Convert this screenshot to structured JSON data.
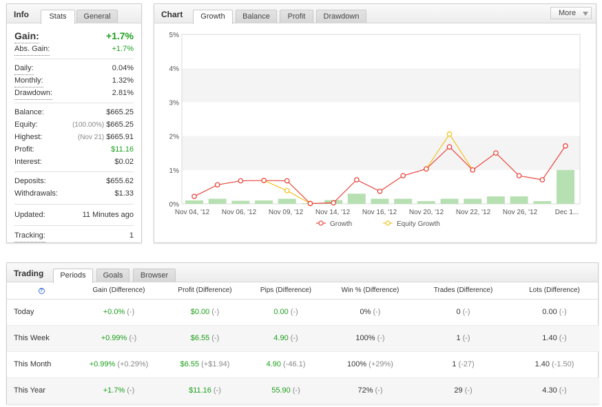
{
  "info": {
    "title": "Info",
    "tabs": [
      {
        "label": "Stats"
      },
      {
        "label": "General"
      }
    ],
    "gain": {
      "label": "Gain:",
      "value": "+1.7%"
    },
    "abs_gain": {
      "label": "Abs. Gain:",
      "value": "+1.7%"
    },
    "daily": {
      "label": "Daily:",
      "value": "0.04%"
    },
    "monthly": {
      "label": "Monthly:",
      "value": "1.32%"
    },
    "drawdown": {
      "label": "Drawdown:",
      "value": "2.81%"
    },
    "balance": {
      "label": "Balance:",
      "value": "$665.25"
    },
    "equity": {
      "label": "Equity:",
      "note": "(100.00%)",
      "value": "$665.25"
    },
    "highest": {
      "label": "Highest:",
      "note": "(Nov 21)",
      "value": "$665.91"
    },
    "profit": {
      "label": "Profit:",
      "value": "$11.16"
    },
    "interest": {
      "label": "Interest:",
      "value": "$0.02"
    },
    "deposits": {
      "label": "Deposits:",
      "value": "$655.62"
    },
    "withdrawals": {
      "label": "Withdrawals:",
      "value": "$1.33"
    },
    "updated": {
      "label": "Updated:",
      "value": "11 Minutes ago"
    },
    "tracking": {
      "label": "Tracking:",
      "value": "1"
    }
  },
  "chart_panel": {
    "title": "Chart",
    "tabs": [
      {
        "label": "Growth"
      },
      {
        "label": "Balance"
      },
      {
        "label": "Profit"
      },
      {
        "label": "Drawdown"
      }
    ],
    "more_label": "More"
  },
  "chart_data": {
    "type": "line",
    "x_tick_labels": [
      "Nov 04, '12",
      "Nov 06, '12",
      "Nov 09, '12",
      "Nov 14, '12",
      "Nov 16, '12",
      "Nov 20, '12",
      "Nov 22, '12",
      "Nov 26, '12",
      "Dec 1..."
    ],
    "y_tick_labels": [
      "0%",
      "1%",
      "2%",
      "3%",
      "4%",
      "5%"
    ],
    "ylim": [
      0,
      5
    ],
    "grid": true,
    "legend_position": "bottom",
    "series": [
      {
        "name": "Growth",
        "color": "#e8443a",
        "values": [
          0.22,
          0.56,
          0.68,
          0.69,
          0.68,
          0.01,
          0.03,
          0.71,
          0.37,
          0.83,
          1.03,
          1.68,
          1.0,
          1.5,
          0.83,
          0.71,
          1.71
        ]
      },
      {
        "name": "Equity Growth",
        "color": "#f2c21f",
        "values": [
          null,
          null,
          null,
          0.69,
          0.39,
          0.01,
          null,
          null,
          null,
          null,
          1.03,
          2.06,
          1.0,
          null,
          null,
          null,
          null
        ]
      }
    ],
    "bars": {
      "color": "#b6e0b1",
      "values": [
        0.1,
        0.15,
        0.09,
        0.1,
        0.15,
        0.02,
        0.11,
        0.3,
        0.15,
        0.15,
        0.08,
        0.15,
        0.15,
        0.22,
        0.22,
        0.08,
        1.0
      ]
    }
  },
  "trading": {
    "title": "Trading",
    "tabs": [
      {
        "label": "Periods"
      },
      {
        "label": "Goals"
      },
      {
        "label": "Browser"
      }
    ],
    "help_glyph": "?",
    "columns": [
      "Gain (Difference)",
      "Profit (Difference)",
      "Pips (Difference)",
      "Win % (Difference)",
      "Trades (Difference)",
      "Lots (Difference)"
    ],
    "rows": [
      {
        "label": "Today",
        "cells": [
          [
            "+0.0%",
            "(-)"
          ],
          [
            "$0.00",
            "(-)"
          ],
          [
            "0.00",
            "(-)"
          ],
          [
            "0%",
            "(-)"
          ],
          [
            "0",
            "(-)"
          ],
          [
            "0.00",
            "(-)"
          ]
        ]
      },
      {
        "label": "This Week",
        "cells": [
          [
            "+0.99%",
            "(-)"
          ],
          [
            "$6.55",
            "(-)"
          ],
          [
            "4.90",
            "(-)"
          ],
          [
            "100%",
            "(-)"
          ],
          [
            "1",
            "(-)"
          ],
          [
            "1.40",
            "(-)"
          ]
        ]
      },
      {
        "label": "This Month",
        "cells": [
          [
            "+0.99%",
            "(+0.29%)"
          ],
          [
            "$6.55",
            "(+$1.94)"
          ],
          [
            "4.90",
            "(-46.1)"
          ],
          [
            "100%",
            "(+29%)"
          ],
          [
            "1",
            "(-27)"
          ],
          [
            "1.40",
            "(-1.50)"
          ]
        ]
      },
      {
        "label": "This Year",
        "cells": [
          [
            "+1.7%",
            "(-)"
          ],
          [
            "$11.16",
            "(-)"
          ],
          [
            "55.90",
            "(-)"
          ],
          [
            "72%",
            "(-)"
          ],
          [
            "29",
            "(-)"
          ],
          [
            "4.30",
            "(-)"
          ]
        ]
      }
    ]
  }
}
